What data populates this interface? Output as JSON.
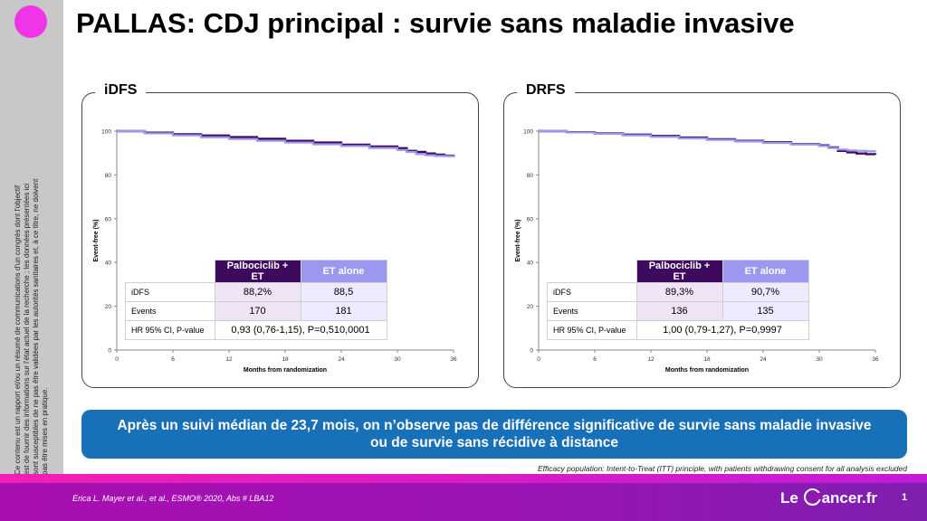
{
  "title": "PALLAS: CDJ principal : survie sans maladie invasive",
  "disclaimer": "Ce contenu est un rapport et/ou un résumé de communications d'un congrès dont l'objectif est de fournir des informations sur l'état actuel de la recherche ; les données présentées ici sont susceptibles de ne pas être validées par les autorités sanitaires et, à ce titre, ne doivent pas être mises en pratique.",
  "panels": [
    {
      "title": "iDFS",
      "ylabel": "Event-free (%)",
      "xlabel": "Months from randomization",
      "table": {
        "header_a": "Palbociclib + ET",
        "header_b": "ET alone",
        "rows": [
          {
            "label": "iDFS",
            "a": "88,2%",
            "b": "88,5"
          },
          {
            "label": "Events",
            "a": "170",
            "b": "181"
          }
        ],
        "hr_label": "HR 95% CI, P-value",
        "hr_value": "0,93 (0,76-1,15), P=0,510,0001"
      }
    },
    {
      "title": "DRFS",
      "ylabel": "Event-free (%)",
      "xlabel": "Months from randomization",
      "table": {
        "header_a": "Palbociclib + ET",
        "header_b": "ET alone",
        "rows": [
          {
            "label": "iDFS",
            "a": "89,3%",
            "b": "90,7%"
          },
          {
            "label": "Events",
            "a": "136",
            "b": "135"
          }
        ],
        "hr_label": "HR 95% CI, P-value",
        "hr_value": "1,00 (0,79-1,27), P=0,9997"
      }
    }
  ],
  "chart_data": [
    {
      "type": "line",
      "xlabel": "Months from randomization",
      "ylabel": "Event-free (%)",
      "xlim": [
        0,
        36
      ],
      "ylim": [
        0,
        100
      ],
      "xticks": [
        0,
        6,
        12,
        18,
        24,
        30,
        36
      ],
      "yticks": [
        0,
        20,
        40,
        60,
        80,
        100
      ],
      "series": [
        {
          "name": "Palbociclib + ET",
          "color": "#3d0a5e",
          "x": [
            0,
            3,
            6,
            9,
            12,
            15,
            18,
            21,
            24,
            27,
            30,
            31,
            32,
            33,
            34,
            35,
            36
          ],
          "y": [
            100,
            99.3,
            98.6,
            98.0,
            97.3,
            96.5,
            95.6,
            94.8,
            93.8,
            93.0,
            92.2,
            91.0,
            90.5,
            89.8,
            89.3,
            88.8,
            88.2
          ]
        },
        {
          "name": "ET alone",
          "color": "#9c98f0",
          "x": [
            0,
            3,
            6,
            9,
            12,
            15,
            18,
            21,
            24,
            27,
            30,
            31,
            32,
            33,
            34,
            35,
            36
          ],
          "y": [
            100,
            99.0,
            98.1,
            97.2,
            96.4,
            95.6,
            94.8,
            94.0,
            93.2,
            92.3,
            91.4,
            90.5,
            89.5,
            89.0,
            88.7,
            88.6,
            88.5
          ]
        }
      ]
    },
    {
      "type": "line",
      "xlabel": "Months from randomization",
      "ylabel": "Event-free (%)",
      "xlim": [
        0,
        36
      ],
      "ylim": [
        0,
        100
      ],
      "xticks": [
        0,
        6,
        12,
        18,
        24,
        30,
        36
      ],
      "yticks": [
        0,
        20,
        40,
        60,
        80,
        100
      ],
      "series": [
        {
          "name": "Palbociclib + ET",
          "color": "#3d0a5e",
          "x": [
            0,
            3,
            6,
            9,
            12,
            15,
            18,
            21,
            24,
            27,
            30,
            31,
            32,
            33,
            34,
            35,
            36
          ],
          "y": [
            100,
            99.5,
            99.0,
            98.4,
            97.8,
            97.1,
            96.3,
            95.6,
            94.9,
            94.1,
            93.5,
            92.6,
            91.0,
            90.3,
            89.8,
            89.5,
            89.3
          ]
        },
        {
          "name": "ET alone",
          "color": "#9c98f0",
          "x": [
            0,
            3,
            6,
            9,
            12,
            15,
            18,
            21,
            24,
            27,
            30,
            31,
            32,
            33,
            34,
            35,
            36
          ],
          "y": [
            100,
            99.4,
            98.8,
            98.1,
            97.4,
            96.7,
            96.0,
            95.3,
            94.6,
            93.9,
            93.2,
            92.3,
            91.6,
            91.2,
            91.0,
            90.8,
            90.7
          ]
        }
      ]
    }
  ],
  "banner": {
    "line1": "Après un suivi médian de 23,7 mois, on n’observe pas de différence significative de survie sans maladie invasive",
    "line2": "ou de survie sans récidive à distance"
  },
  "footnote": "Efficacy population: Intent-to-Treat (ITT) principle, with patients withdrawing consent for all analysis excluded",
  "footer": {
    "citation": "Erica L. Mayer et al., et al., ESMO® 2020, Abs # LBA12",
    "logo_left": "Le",
    "logo_right": "ancer.fr",
    "page_number": "1"
  },
  "colors": {
    "accent_magenta": "#ee36e6",
    "banner_blue": "#1870b8",
    "series_dark": "#3d0a5e",
    "series_light": "#9c98f0"
  }
}
